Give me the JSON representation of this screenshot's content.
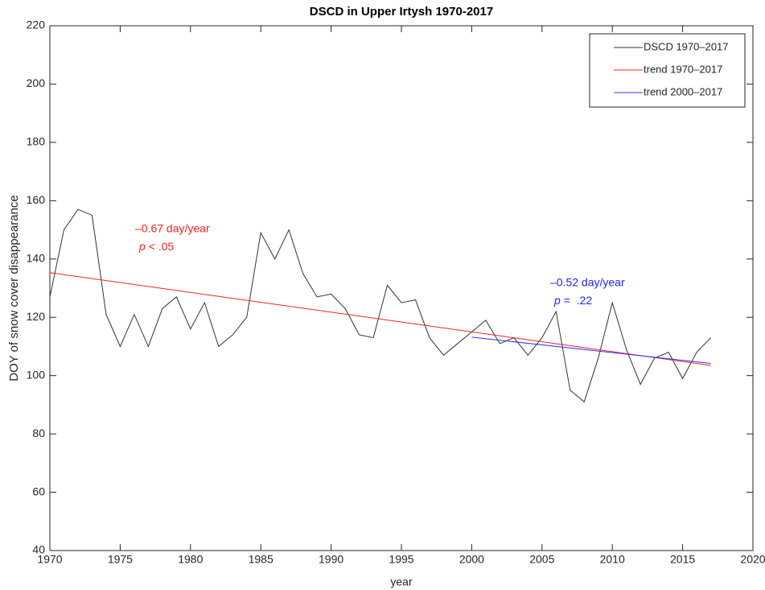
{
  "chart_data": {
    "type": "line",
    "title": "DSCD in Upper Irtysh 1970-2017",
    "x_label": "year",
    "y_label": "DOY of snow cover disappearance",
    "xlim": [
      1970,
      2020
    ],
    "xticks": [
      1970,
      1975,
      1980,
      1985,
      1990,
      1995,
      2000,
      2005,
      2010,
      2015,
      2020
    ],
    "ylim": [
      40,
      220
    ],
    "yticks": [
      40,
      60,
      80,
      100,
      120,
      140,
      160,
      180,
      200,
      220
    ],
    "grid": false,
    "legend": "upper right",
    "series": [
      {
        "name": "DSCD 1970–2017",
        "color": "#333333",
        "x": [
          1970,
          1971,
          1972,
          1973,
          1974,
          1975,
          1976,
          1977,
          1978,
          1979,
          1980,
          1981,
          1982,
          1983,
          1984,
          1985,
          1986,
          1987,
          1988,
          1989,
          1990,
          1991,
          1992,
          1993,
          1994,
          1995,
          1996,
          1997,
          1998,
          1999,
          2000,
          2001,
          2002,
          2003,
          2004,
          2005,
          2006,
          2007,
          2008,
          2009,
          2010,
          2011,
          2012,
          2013,
          2014,
          2015,
          2016,
          2017
        ],
        "values": [
          127,
          150,
          157,
          155,
          121,
          110,
          121,
          110,
          123,
          127,
          116,
          125,
          110,
          114,
          120,
          149,
          140,
          150,
          135,
          127,
          128,
          123,
          114,
          113,
          131,
          125,
          126,
          113,
          107,
          111,
          115,
          119,
          111,
          113,
          107,
          113,
          122,
          95,
          91,
          106,
          125,
          109,
          97,
          106,
          108,
          99,
          108,
          113
        ]
      },
      {
        "name": "trend 1970–2017",
        "color": "#ff2020",
        "x": [
          1970,
          2017
        ],
        "values": [
          135.3,
          103.5
        ]
      },
      {
        "name": "trend 2000–2017",
        "color": "#3030ff",
        "x": [
          2000,
          2017
        ],
        "values": [
          113.2,
          104.2
        ]
      }
    ],
    "annotations": [
      {
        "text": "–0.67 day/year",
        "p": "p",
        "p_text": " < .05",
        "color": "#ff2020"
      },
      {
        "text": "–0.52 day/year",
        "p": "p",
        "p_text": " =  .22",
        "color": "#2020ff"
      }
    ]
  }
}
